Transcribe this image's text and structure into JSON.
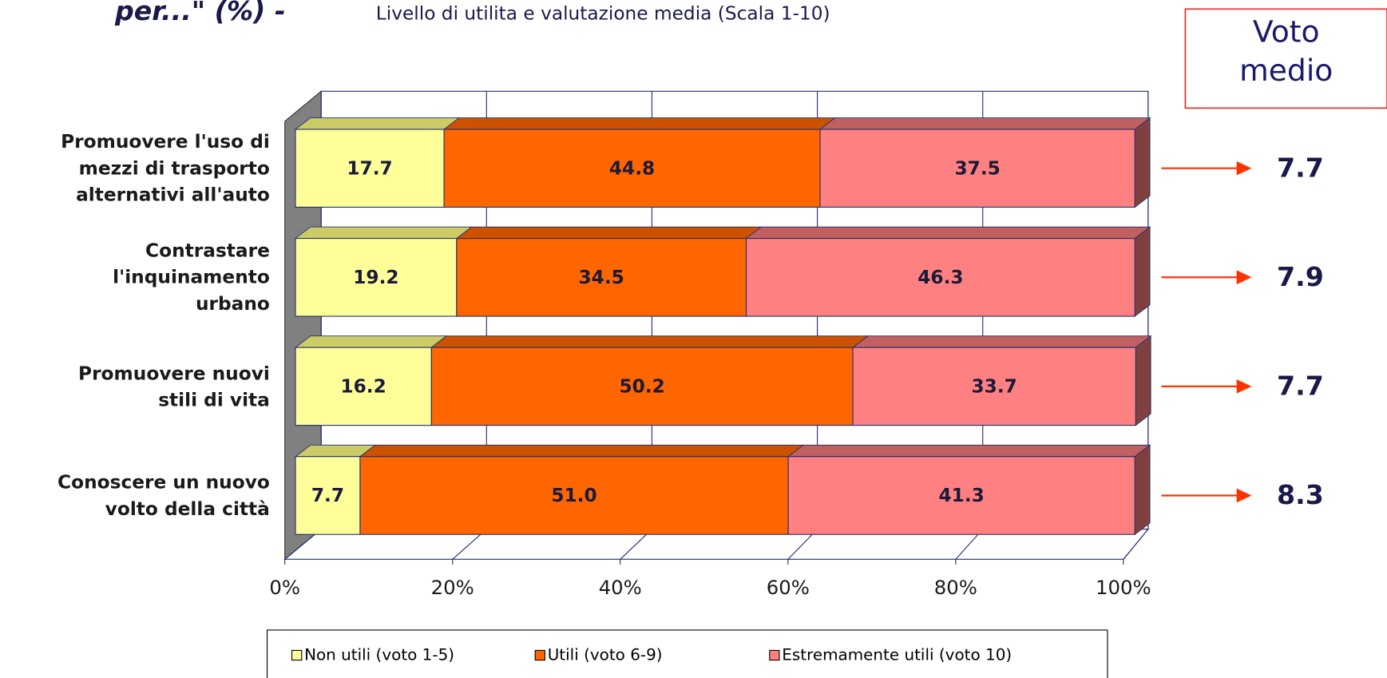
{
  "chart_data": {
    "type": "bar3d_stacked_horizontal",
    "title": "per...\" (%) -",
    "subtitle": "Livello di utilita e valutazione media (Scala 1-10)",
    "categories": [
      "Promuovere l'uso di\nmezzi di trasporto\nalternativi all'auto",
      "Contrastare\nl'inquinamento\nurbano",
      "Promuovere nuovi\nstili di vita",
      "Conoscere un nuovo\nvolto della città"
    ],
    "series": [
      {
        "name": "Non utili (voto 1-5)",
        "color": "#ffff99",
        "values": [
          17.7,
          19.2,
          16.2,
          7.7
        ]
      },
      {
        "name": "Utili (voto 6-9)",
        "color": "#ff6600",
        "values": [
          44.8,
          34.5,
          50.2,
          51.0
        ],
        "value_labels": [
          "44.8",
          "34.5",
          "50.2",
          "51.0"
        ]
      },
      {
        "name": "Estremamente utili (voto 10)",
        "color": "#ff8080",
        "values": [
          37.5,
          46.3,
          33.7,
          41.3
        ]
      }
    ],
    "xlim": [
      0,
      100
    ],
    "xticks": [
      {
        "value": 0,
        "label": "0%"
      },
      {
        "value": 20,
        "label": "20%"
      },
      {
        "value": 40,
        "label": "40%"
      },
      {
        "value": 60,
        "label": "60%"
      },
      {
        "value": 80,
        "label": "80%"
      },
      {
        "value": 100,
        "label": "100%"
      }
    ],
    "grid": true,
    "mean_score_label": "Voto\nmedio",
    "mean_scores": [
      7.7,
      7.9,
      7.7,
      8.3
    ]
  }
}
